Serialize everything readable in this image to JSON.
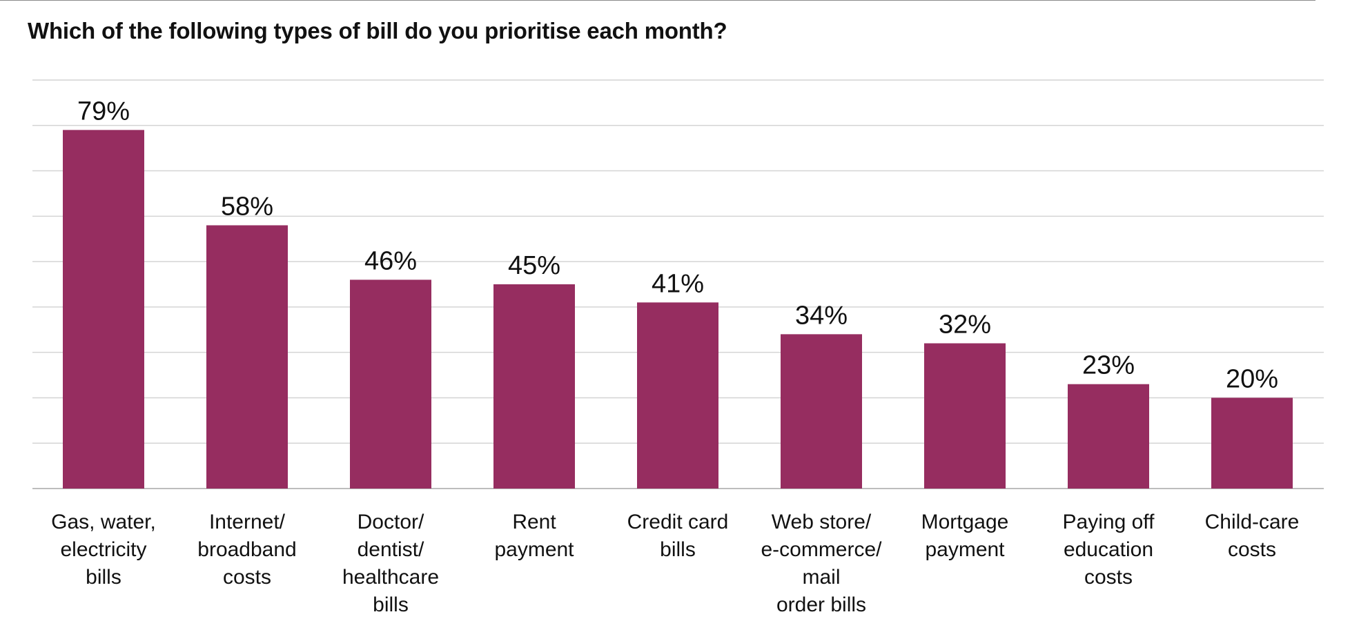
{
  "chart_data": {
    "type": "bar",
    "title": "Which of the following types of bill do you prioritise each month?",
    "categories": [
      [
        "Gas, water,",
        "electricity",
        "bills"
      ],
      [
        "Internet/",
        "broadband",
        "costs"
      ],
      [
        "Doctor/",
        "dentist/",
        "healthcare",
        "bills"
      ],
      [
        "Rent",
        "payment"
      ],
      [
        "Credit card",
        "bills"
      ],
      [
        "Web store/",
        "e-commerce/",
        "mail",
        "order bills"
      ],
      [
        "Mortgage",
        "payment"
      ],
      [
        "Paying off",
        "education",
        "costs"
      ],
      [
        "Child-care",
        "costs"
      ]
    ],
    "values": [
      79,
      58,
      46,
      45,
      41,
      34,
      32,
      23,
      20
    ],
    "data_labels": [
      "79%",
      "58%",
      "46%",
      "45%",
      "41%",
      "34%",
      "32%",
      "23%",
      "20%"
    ],
    "ylim": [
      0,
      90
    ],
    "grid_step": 10,
    "grid": true,
    "legend": false,
    "bar_color": "#962d60",
    "grid_color": "#d4d4d4",
    "baseline_color": "#bdbdbd"
  }
}
